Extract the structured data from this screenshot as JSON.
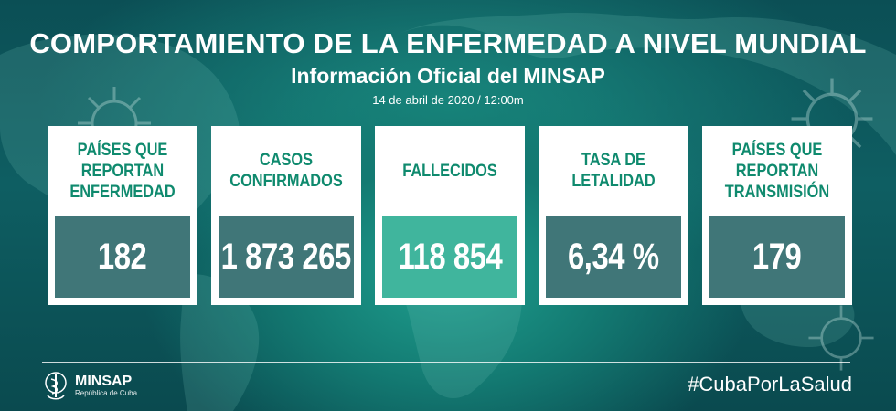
{
  "header": {
    "title": "COMPORTAMIENTO DE LA ENFERMEDAD A NIVEL MUNDIAL",
    "subtitle": "Información Oficial del MINSAP",
    "date": "14 de abril de 2020 / 12:00m"
  },
  "cards": [
    {
      "label": "PAÍSES QUE REPORTAN ENFERMEDAD",
      "value": "182"
    },
    {
      "label": "CASOS CONFIRMADOS",
      "value": "1 873 265"
    },
    {
      "label": "FALLECIDOS",
      "value": "118 854"
    },
    {
      "label": "TASA DE LETALIDAD",
      "value": "6,34 %"
    },
    {
      "label": "PAÍSES QUE REPORTAN TRANSMISIÓN",
      "value": "179"
    }
  ],
  "footer": {
    "logo_name": "MINSAP",
    "logo_sub": "República de Cuba",
    "hashtag": "#CubaPorLaSalud"
  },
  "colors": {
    "background": "#0e5e62",
    "label_green": "#0f8a6e",
    "highlight": "#1ea88c"
  },
  "icons": [
    "world-map",
    "coronavirus-icon",
    "minsap-logo-icon"
  ]
}
